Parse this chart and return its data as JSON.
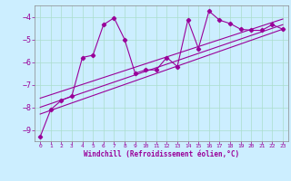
{
  "xlabel": "Windchill (Refroidissement éolien,°C)",
  "bg_color": "#cceeff",
  "line_color": "#990099",
  "grid_color": "#aaddcc",
  "spine_color": "#888888",
  "xlim": [
    -0.5,
    23.5
  ],
  "ylim": [
    -9.5,
    -3.5
  ],
  "yticks": [
    -9,
    -8,
    -7,
    -6,
    -5,
    -4
  ],
  "xticks": [
    0,
    1,
    2,
    3,
    4,
    5,
    6,
    7,
    8,
    9,
    10,
    11,
    12,
    13,
    14,
    15,
    16,
    17,
    18,
    19,
    20,
    21,
    22,
    23
  ],
  "scatter_x": [
    0,
    1,
    2,
    3,
    4,
    5,
    6,
    7,
    8,
    9,
    10,
    11,
    12,
    13,
    14,
    15,
    16,
    17,
    18,
    19,
    20,
    21,
    22,
    23
  ],
  "scatter_y": [
    -9.3,
    -8.1,
    -7.7,
    -7.5,
    -5.8,
    -5.7,
    -4.35,
    -4.05,
    -5.0,
    -6.5,
    -6.35,
    -6.35,
    -5.8,
    -6.2,
    -4.15,
    -5.4,
    -3.75,
    -4.15,
    -4.3,
    -4.55,
    -4.6,
    -4.6,
    -4.35,
    -4.55
  ],
  "reg_lines": [
    {
      "x": [
        0,
        23
      ],
      "y": [
        -8.3,
        -4.55
      ]
    },
    {
      "x": [
        0,
        23
      ],
      "y": [
        -8.0,
        -4.35
      ]
    },
    {
      "x": [
        0,
        23
      ],
      "y": [
        -7.6,
        -4.1
      ]
    }
  ],
  "ytick_fontsize": 6,
  "xtick_fontsize": 4.5,
  "xlabel_fontsize": 5.5
}
